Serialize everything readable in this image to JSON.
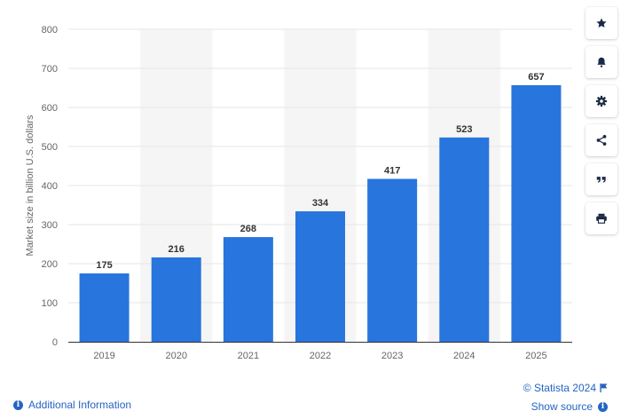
{
  "chart_data": {
    "type": "bar",
    "categories": [
      "2019",
      "2020",
      "2021",
      "2022",
      "2023",
      "2024",
      "2025"
    ],
    "values": [
      175,
      216,
      268,
      334,
      417,
      523,
      657
    ],
    "data_labels": [
      "175",
      "216",
      "268",
      "334",
      "417",
      "523",
      "657"
    ],
    "title": "",
    "xlabel": "",
    "ylabel": "Market size in billion U.S. dollars",
    "ylim": [
      0,
      800
    ],
    "yticks": [
      0,
      100,
      200,
      300,
      400,
      500,
      600,
      700,
      800
    ],
    "ytick_labels": [
      "0",
      "100",
      "200",
      "300",
      "400",
      "500",
      "600",
      "700",
      "800"
    ],
    "grid": true,
    "alternating_column_bands": true,
    "legend": "none",
    "bar_color": "#2875de"
  },
  "toolbar": {
    "items": [
      {
        "name": "favorite",
        "icon": "star-icon"
      },
      {
        "name": "notifications",
        "icon": "bell-icon"
      },
      {
        "name": "settings",
        "icon": "gear-icon"
      },
      {
        "name": "share",
        "icon": "share-icon"
      },
      {
        "name": "cite",
        "icon": "quote-icon"
      },
      {
        "name": "print",
        "icon": "print-icon"
      }
    ]
  },
  "footer": {
    "additional_info": "Additional Information",
    "copyright": "© Statista 2024",
    "show_source": "Show source"
  },
  "colors": {
    "link": "#2464c4",
    "band": "#f5f5f5",
    "grid": "#e6e6e6"
  }
}
